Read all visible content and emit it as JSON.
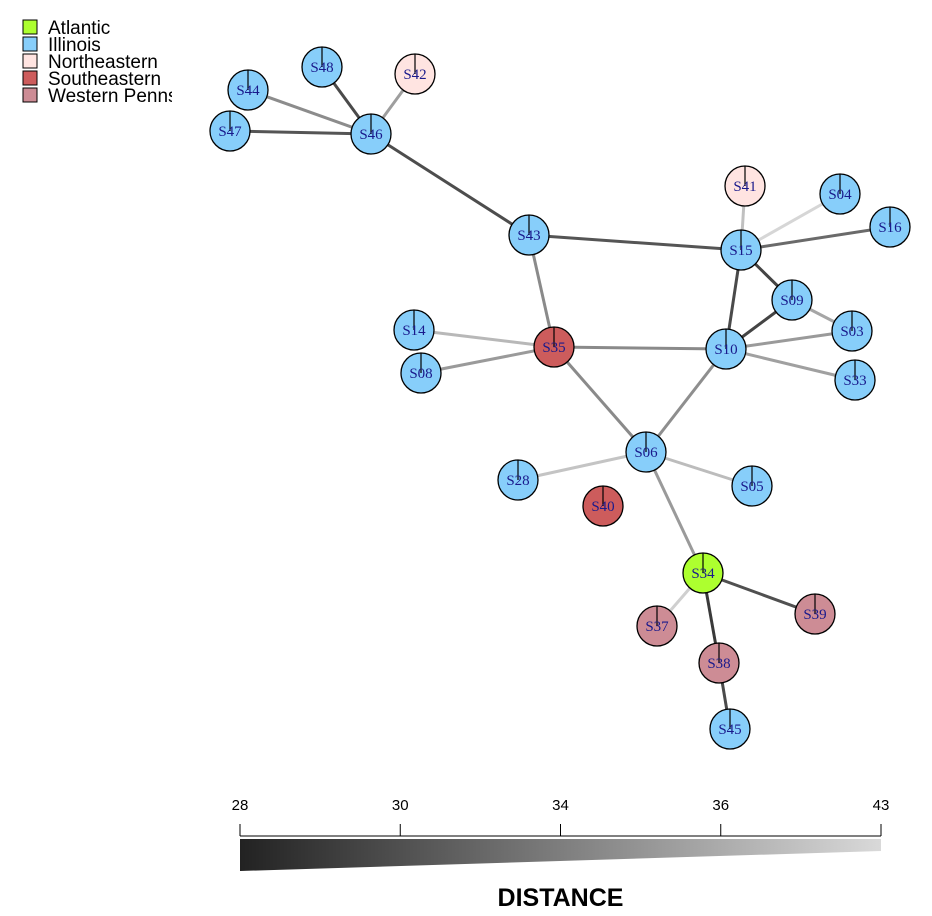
{
  "legend": {
    "items": [
      {
        "label": "Atlantic",
        "color": "#adff2f"
      },
      {
        "label": "Illinois",
        "color": "#87cefa"
      },
      {
        "label": "Northeastern",
        "color": "#ffe4e1"
      },
      {
        "label": "Southeastern",
        "color": "#cd5c5c"
      },
      {
        "label": "Western Pennsylvania",
        "color": "#cd8c95"
      }
    ]
  },
  "nodes": [
    {
      "id": "S48",
      "group": "Illinois"
    },
    {
      "id": "S42",
      "group": "Northeastern"
    },
    {
      "id": "S44",
      "group": "Illinois"
    },
    {
      "id": "S47",
      "group": "Illinois"
    },
    {
      "id": "S46",
      "group": "Illinois"
    },
    {
      "id": "S41",
      "group": "Northeastern"
    },
    {
      "id": "S04",
      "group": "Illinois"
    },
    {
      "id": "S16",
      "group": "Illinois"
    },
    {
      "id": "S43",
      "group": "Illinois"
    },
    {
      "id": "S15",
      "group": "Illinois"
    },
    {
      "id": "S09",
      "group": "Illinois"
    },
    {
      "id": "S03",
      "group": "Illinois"
    },
    {
      "id": "S14",
      "group": "Illinois"
    },
    {
      "id": "S35",
      "group": "Southeastern"
    },
    {
      "id": "S10",
      "group": "Illinois"
    },
    {
      "id": "S08",
      "group": "Illinois"
    },
    {
      "id": "S33",
      "group": "Illinois"
    },
    {
      "id": "S06",
      "group": "Illinois"
    },
    {
      "id": "S28",
      "group": "Illinois"
    },
    {
      "id": "S05",
      "group": "Illinois"
    },
    {
      "id": "S40",
      "group": "Southeastern"
    },
    {
      "id": "S34",
      "group": "Atlantic"
    },
    {
      "id": "S37",
      "group": "Western Pennsylvania"
    },
    {
      "id": "S39",
      "group": "Western Pennsylvania"
    },
    {
      "id": "S38",
      "group": "Western Pennsylvania"
    },
    {
      "id": "S45",
      "group": "Illinois"
    }
  ],
  "edges": [
    {
      "source": "S48",
      "target": "S46",
      "shade": "#4a4a4a"
    },
    {
      "source": "S42",
      "target": "S46",
      "shade": "#9e9e9e"
    },
    {
      "source": "S44",
      "target": "S46",
      "shade": "#8c8c8c"
    },
    {
      "source": "S47",
      "target": "S46",
      "shade": "#555555"
    },
    {
      "source": "S46",
      "target": "S43",
      "shade": "#4d4d4d"
    },
    {
      "source": "S43",
      "target": "S15",
      "shade": "#555555"
    },
    {
      "source": "S43",
      "target": "S35",
      "shade": "#8a8a8a"
    },
    {
      "source": "S41",
      "target": "S15",
      "shade": "#c0c0c0"
    },
    {
      "source": "S04",
      "target": "S15",
      "shade": "#d6d6d6"
    },
    {
      "source": "S16",
      "target": "S15",
      "shade": "#6a6a6a"
    },
    {
      "source": "S15",
      "target": "S09",
      "shade": "#444444"
    },
    {
      "source": "S15",
      "target": "S10",
      "shade": "#4a4a4a"
    },
    {
      "source": "S09",
      "target": "S10",
      "shade": "#444444"
    },
    {
      "source": "S09",
      "target": "S03",
      "shade": "#a6a6a6"
    },
    {
      "source": "S10",
      "target": "S03",
      "shade": "#9a9a9a"
    },
    {
      "source": "S10",
      "target": "S33",
      "shade": "#a0a0a0"
    },
    {
      "source": "S14",
      "target": "S35",
      "shade": "#b8b8b8"
    },
    {
      "source": "S08",
      "target": "S35",
      "shade": "#9a9a9a"
    },
    {
      "source": "S35",
      "target": "S10",
      "shade": "#8a8a8a"
    },
    {
      "source": "S35",
      "target": "S06",
      "shade": "#8a8a8a"
    },
    {
      "source": "S10",
      "target": "S06",
      "shade": "#8e8e8e"
    },
    {
      "source": "S28",
      "target": "S06",
      "shade": "#c4c4c4"
    },
    {
      "source": "S05",
      "target": "S06",
      "shade": "#bcbcbc"
    },
    {
      "source": "S06",
      "target": "S34",
      "shade": "#9a9a9a"
    },
    {
      "source": "S34",
      "target": "S37",
      "shade": "#cfcfcf"
    },
    {
      "source": "S34",
      "target": "S39",
      "shade": "#505050"
    },
    {
      "source": "S34",
      "target": "S38",
      "shade": "#3a3a3a"
    },
    {
      "source": "S38",
      "target": "S45",
      "shade": "#4a4a4a"
    }
  ],
  "scale": {
    "title": "DISTANCE",
    "ticks": [
      "28",
      "30",
      "34",
      "36",
      "43"
    ],
    "gradient_colors": [
      "#222222",
      "#d9d9d9"
    ]
  }
}
